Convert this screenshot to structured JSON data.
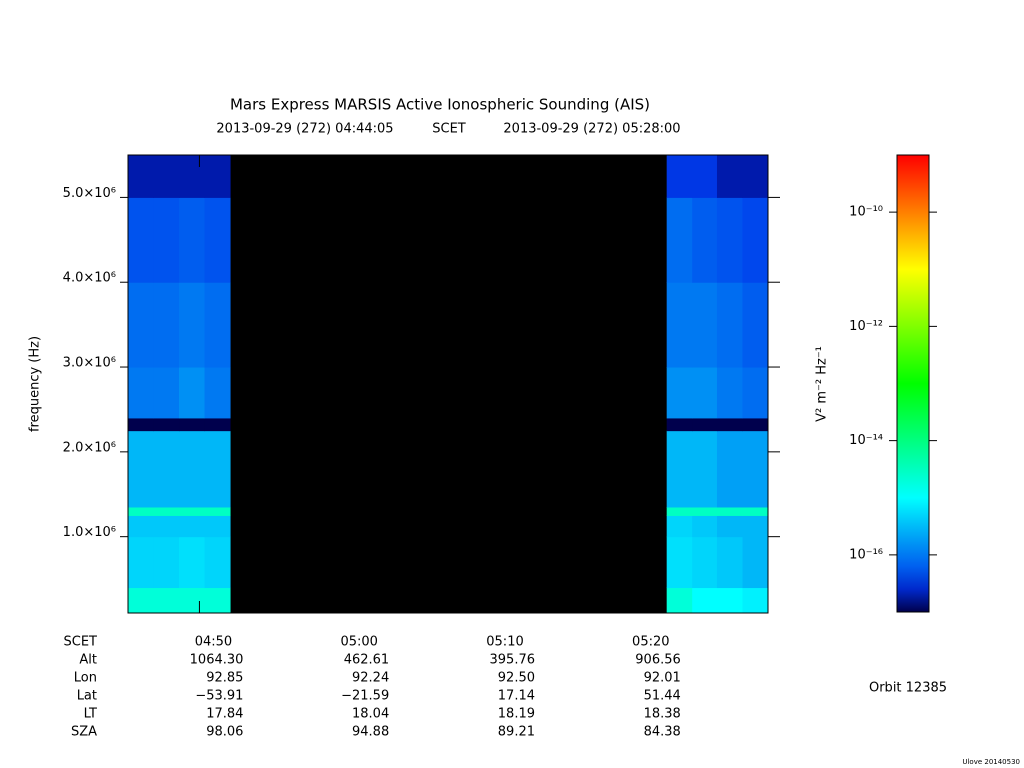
{
  "chart_data": {
    "type": "heatmap",
    "title": "Mars Express MARSIS Active Ionospheric Sounding (AIS)",
    "subtitle_start": "2013-09-29 (272) 04:44:05",
    "subtitle_mid": "SCET",
    "subtitle_end": "2013-09-29 (272) 05:28:00",
    "y_label": "frequency (Hz)",
    "colorbar_label": "V² m⁻² Hz⁻¹",
    "xlim": [
      285.1,
      329.0
    ],
    "xticks": [
      {
        "value": 290,
        "label": "04:50"
      },
      {
        "value": 300,
        "label": "05:00"
      },
      {
        "value": 310,
        "label": "05:10"
      },
      {
        "value": 320,
        "label": "05:20"
      }
    ],
    "ylim": [
      100000,
      5500000
    ],
    "yticks": [
      {
        "value": 1000000,
        "label": "1.0×10⁶"
      },
      {
        "value": 2000000,
        "label": "2.0×10⁶"
      },
      {
        "value": 3000000,
        "label": "3.0×10⁶"
      },
      {
        "value": 4000000,
        "label": "4.0×10⁶"
      },
      {
        "value": 5000000,
        "label": "5.0×10⁶"
      }
    ],
    "zlim": [
      1e-17,
      1e-09
    ],
    "zlog": true,
    "zticks": [
      {
        "value": 1e-10,
        "label": "10⁻¹⁰"
      },
      {
        "value": 1e-12,
        "label": "10⁻¹²"
      },
      {
        "value": 1e-14,
        "label": "10⁻¹⁴"
      },
      {
        "value": 1e-16,
        "label": "10⁻¹⁶"
      }
    ],
    "x_edges": [
      285.1,
      286.85,
      288.6,
      290.35,
      292.1,
      322.05,
      323.8,
      325.5,
      327.25,
      329.0
    ],
    "y_edges": [
      100000,
      400000,
      1000000,
      1250000,
      1350000,
      2250000,
      2400000,
      3000000,
      4000000,
      5000000,
      5500000
    ],
    "values": [
      [
        2e-15,
        2e-15,
        2e-15,
        2e-15,
        null,
        2e-15,
        1e-15,
        1e-15,
        8e-16
      ],
      [
        5e-16,
        5e-16,
        6e-16,
        5e-16,
        null,
        6e-16,
        5e-16,
        4e-16,
        3e-16
      ],
      [
        4e-16,
        4e-16,
        4e-16,
        4e-16,
        null,
        5e-16,
        4e-16,
        3e-16,
        3e-16
      ],
      [
        3e-15,
        3e-15,
        3e-15,
        3e-15,
        null,
        3e-15,
        3e-15,
        3e-15,
        3e-15
      ],
      [
        3e-16,
        3e-16,
        3e-16,
        3e-16,
        null,
        3e-16,
        3e-16,
        2e-16,
        2e-16
      ],
      [
        1e-17,
        1e-17,
        1e-17,
        1e-17,
        null,
        1e-17,
        1e-17,
        1e-17,
        1e-17
      ],
      [
        1e-16,
        1e-16,
        1.5e-16,
        1e-16,
        null,
        1.5e-16,
        1.5e-16,
        1e-16,
        8e-17
      ],
      [
        8e-17,
        8e-17,
        1e-16,
        8e-17,
        null,
        1e-16,
        1e-16,
        8e-17,
        6e-17
      ],
      [
        5e-17,
        5e-17,
        6e-17,
        5e-17,
        null,
        8e-17,
        6e-17,
        5e-17,
        4e-17
      ],
      [
        2e-17,
        2e-17,
        2e-17,
        2e-17,
        null,
        3e-17,
        3e-17,
        2e-17,
        2e-17
      ]
    ],
    "ephemeris": {
      "scet_label": "SCET",
      "row_labels": [
        "Alt",
        "Lon",
        "Lat",
        "LT",
        "SZA"
      ],
      "rows": [
        [
          "1064.30",
          "462.61",
          "395.76",
          "906.56"
        ],
        [
          "92.85",
          "92.24",
          "92.50",
          "92.01"
        ],
        [
          "−53.91",
          "−21.59",
          "17.14",
          "51.44"
        ],
        [
          "17.84",
          "18.04",
          "18.19",
          "18.38"
        ],
        [
          "98.06",
          "94.88",
          "89.21",
          "84.38"
        ]
      ]
    },
    "orbit": "Orbit 12385",
    "footer": "Ulove 20140530"
  }
}
